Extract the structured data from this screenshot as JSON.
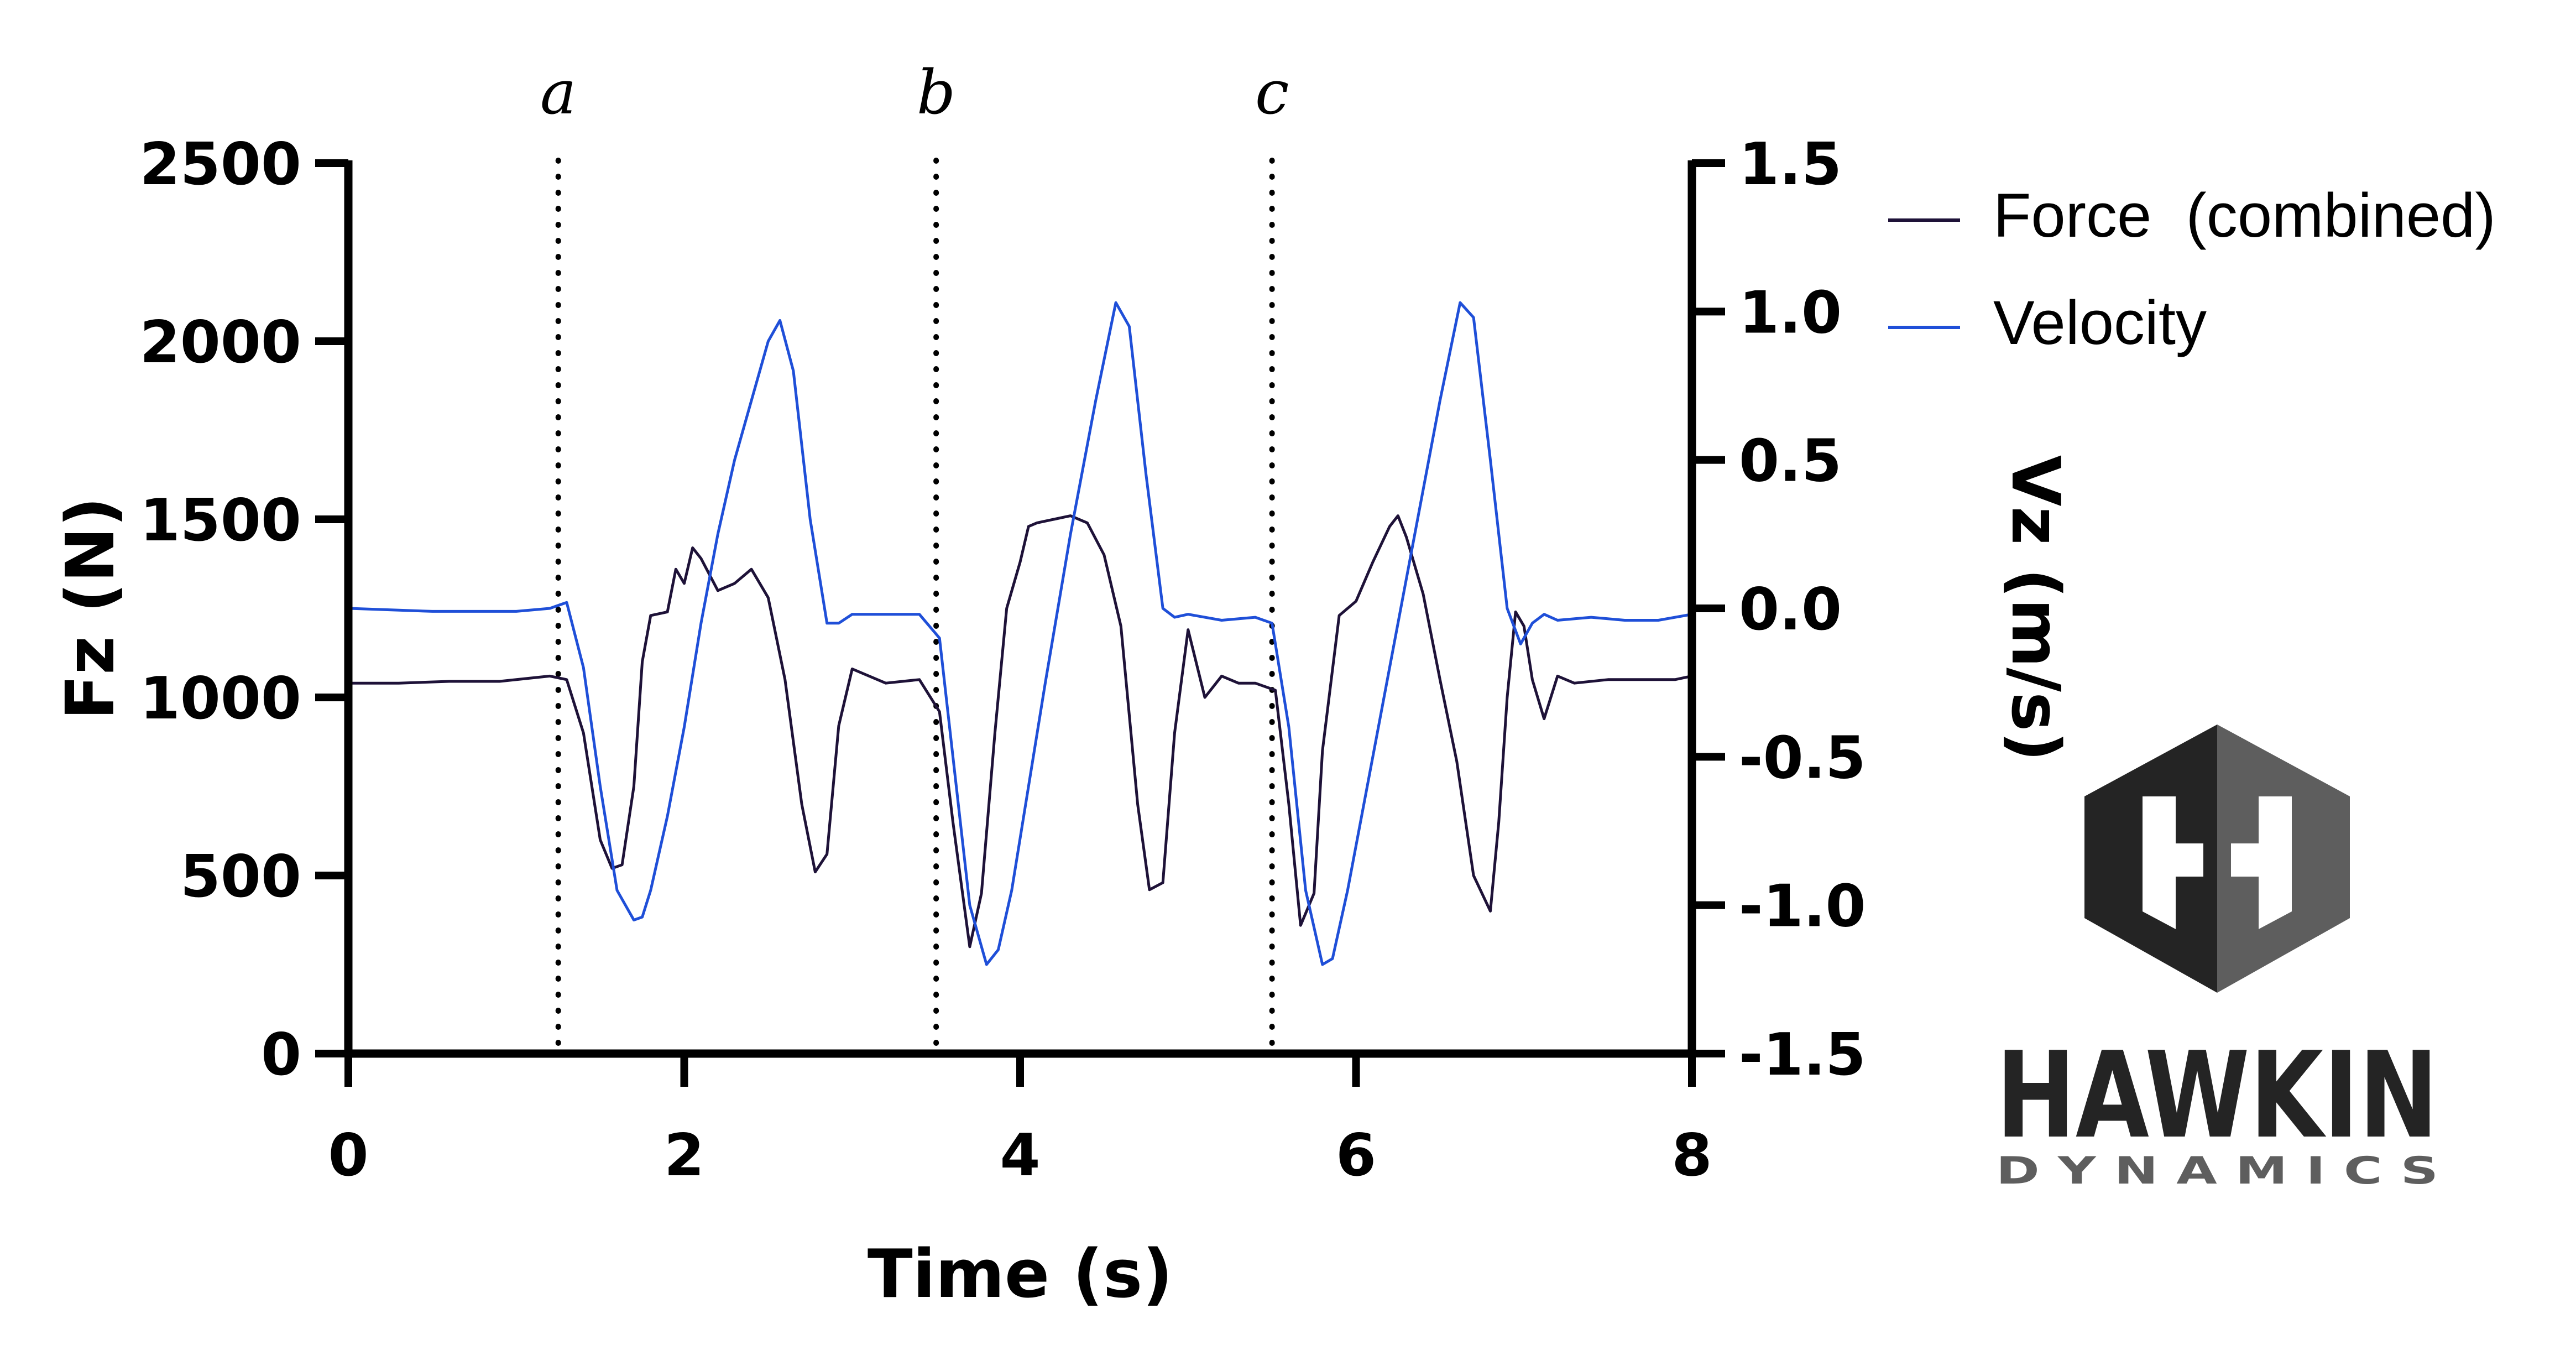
{
  "chart_data": {
    "type": "line",
    "title": "",
    "xlabel": "Time (s)",
    "ylabel_left": "Fz (N)",
    "ylabel_right": "Vz (m/s)",
    "xlim": [
      0,
      8
    ],
    "ylim_left": [
      0,
      2500
    ],
    "ylim_right": [
      -1.5,
      1.5
    ],
    "x_ticks": [
      "0",
      "2",
      "4",
      "6",
      "8"
    ],
    "y_left_ticks": [
      "0",
      "500",
      "1000",
      "1500",
      "2000",
      "2500"
    ],
    "y_right_ticks": [
      "-1.5",
      "-1.0",
      "-0.5",
      "0.0",
      "0.5",
      "1.0",
      "1.5"
    ],
    "grid": false,
    "legend_position": "right",
    "markers": [
      {
        "label": "a",
        "x": 1.25
      },
      {
        "label": "b",
        "x": 3.5
      },
      {
        "label": "c",
        "x": 5.5
      }
    ],
    "series": [
      {
        "name": "Force  (combined)",
        "axis": "left",
        "color": "#1e1238",
        "x": [
          0,
          0.3,
          0.6,
          0.9,
          1.2,
          1.3,
          1.4,
          1.5,
          1.57,
          1.63,
          1.7,
          1.75,
          1.8,
          1.9,
          1.95,
          2.0,
          2.05,
          2.1,
          2.2,
          2.3,
          2.4,
          2.5,
          2.6,
          2.7,
          2.78,
          2.85,
          2.92,
          3.0,
          3.2,
          3.4,
          3.52,
          3.6,
          3.7,
          3.77,
          3.85,
          3.92,
          4.0,
          4.05,
          4.1,
          4.2,
          4.3,
          4.4,
          4.5,
          4.6,
          4.7,
          4.77,
          4.85,
          4.92,
          5.0,
          5.1,
          5.2,
          5.3,
          5.4,
          5.52,
          5.6,
          5.67,
          5.75,
          5.8,
          5.9,
          6.0,
          6.1,
          6.2,
          6.25,
          6.3,
          6.4,
          6.5,
          6.6,
          6.7,
          6.8,
          6.85,
          6.9,
          6.95,
          7.0,
          7.05,
          7.12,
          7.2,
          7.3,
          7.5,
          7.7,
          7.9,
          8.0
        ],
        "y": [
          1040,
          1040,
          1045,
          1045,
          1060,
          1050,
          900,
          600,
          520,
          530,
          750,
          1100,
          1230,
          1240,
          1360,
          1320,
          1420,
          1390,
          1300,
          1320,
          1360,
          1280,
          1050,
          700,
          510,
          560,
          920,
          1080,
          1040,
          1050,
          960,
          650,
          300,
          450,
          900,
          1250,
          1380,
          1480,
          1490,
          1500,
          1510,
          1490,
          1400,
          1200,
          700,
          460,
          480,
          900,
          1190,
          1000,
          1060,
          1040,
          1040,
          1020,
          700,
          360,
          450,
          850,
          1230,
          1270,
          1380,
          1480,
          1510,
          1450,
          1290,
          1050,
          820,
          500,
          400,
          650,
          1000,
          1240,
          1200,
          1050,
          940,
          1060,
          1040,
          1050,
          1050,
          1050,
          1060
        ]
      },
      {
        "name": "Velocity",
        "axis": "right",
        "color": "#1f4fd8",
        "x": [
          0,
          0.5,
          1.0,
          1.2,
          1.3,
          1.4,
          1.5,
          1.6,
          1.7,
          1.75,
          1.8,
          1.9,
          2.0,
          2.1,
          2.2,
          2.3,
          2.4,
          2.5,
          2.57,
          2.65,
          2.75,
          2.85,
          2.92,
          3.0,
          3.2,
          3.4,
          3.52,
          3.6,
          3.7,
          3.8,
          3.87,
          3.95,
          4.05,
          4.15,
          4.3,
          4.45,
          4.57,
          4.65,
          4.75,
          4.85,
          4.92,
          5.0,
          5.2,
          5.4,
          5.5,
          5.6,
          5.7,
          5.8,
          5.86,
          5.95,
          6.1,
          6.3,
          6.5,
          6.62,
          6.7,
          6.8,
          6.9,
          6.98,
          7.05,
          7.12,
          7.2,
          7.4,
          7.6,
          7.8,
          8.0
        ],
        "y": [
          0,
          -0.01,
          -0.01,
          0.0,
          0.02,
          -0.2,
          -0.6,
          -0.95,
          -1.05,
          -1.04,
          -0.95,
          -0.7,
          -0.4,
          -0.05,
          0.25,
          0.5,
          0.7,
          0.9,
          0.97,
          0.8,
          0.3,
          -0.05,
          -0.05,
          -0.02,
          -0.02,
          -0.02,
          -0.1,
          -0.5,
          -1.0,
          -1.2,
          -1.15,
          -0.95,
          -0.6,
          -0.25,
          0.25,
          0.7,
          1.03,
          0.95,
          0.45,
          0.0,
          -0.03,
          -0.02,
          -0.04,
          -0.03,
          -0.05,
          -0.4,
          -0.95,
          -1.2,
          -1.18,
          -0.95,
          -0.5,
          0.1,
          0.7,
          1.03,
          0.98,
          0.5,
          0.0,
          -0.12,
          -0.05,
          -0.02,
          -0.04,
          -0.03,
          -0.04,
          -0.04,
          -0.02
        ]
      }
    ]
  },
  "logo": {
    "word": "HAWKIN",
    "subword": "D Y N A M I C S"
  }
}
